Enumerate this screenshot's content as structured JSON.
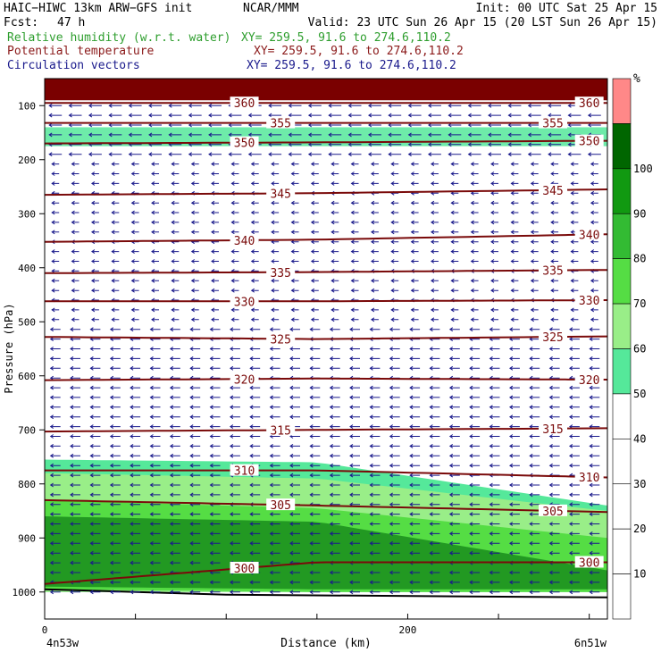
{
  "header": {
    "model": "HAIC−HIWC 13km ARW−GFS init",
    "org": "NCAR/MMM",
    "init": "Init: 00 UTC Sat 25 Apr 15",
    "fcst_label": "Fcst:",
    "fcst_value": "47 h",
    "valid": "Valid: 23 UTC Sun 26 Apr 15 (20 LST Sun 26 Apr 15)",
    "fields": [
      {
        "name": "Relative humidity (w.r.t. water)",
        "xy": "XY= 259.5, 91.6 to 274.6,110.2",
        "color": "#2e9e2e"
      },
      {
        "name": "Potential temperature",
        "xy": "XY= 259.5, 91.6 to 274.6,110.2",
        "color": "#8b1a1a"
      },
      {
        "name": "Circulation vectors",
        "xy": "XY= 259.5, 91.6 to 274.6,110.2",
        "color": "#1a1a8c"
      }
    ]
  },
  "chart_data": {
    "type": "cross-section",
    "xlabel": "Distance (km)",
    "ylabel": "Pressure (hPa)",
    "xlim": [
      0,
      310
    ],
    "ylim": [
      1050,
      50
    ],
    "x_ticks": [
      0,
      200
    ],
    "y_ticks": [
      100,
      200,
      300,
      400,
      500,
      600,
      700,
      800,
      900,
      1000
    ],
    "x_end_labels": [
      "4n53w",
      "6n51w"
    ],
    "colorbar": {
      "unit": "%",
      "levels": [
        10,
        20,
        30,
        40,
        50,
        60,
        70,
        80,
        90,
        100
      ],
      "colors": [
        "#ffffff",
        "#ffffff",
        "#ffffff",
        "#ffffff",
        "#ffffff",
        "#55e89a",
        "#99ee88",
        "#55dd44",
        "#33bb33",
        "#119911",
        "#006600",
        "#ff8888"
      ]
    },
    "theta_contours": [
      {
        "label": "360",
        "p": [
          95,
          95,
          95
        ]
      },
      {
        "label": "355",
        "p": [
          132,
          132,
          132
        ]
      },
      {
        "label": "350",
        "p": [
          170,
          168,
          165
        ]
      },
      {
        "label": "345",
        "p": [
          265,
          262,
          255
        ]
      },
      {
        "label": "340",
        "p": [
          352,
          348,
          338
        ]
      },
      {
        "label": "335",
        "p": [
          410,
          408,
          404
        ]
      },
      {
        "label": "330",
        "p": [
          462,
          462,
          460
        ]
      },
      {
        "label": "325",
        "p": [
          528,
          532,
          527
        ]
      },
      {
        "label": "320",
        "p": [
          608,
          605,
          607
        ]
      },
      {
        "label": "315",
        "p": [
          703,
          700,
          697
        ]
      },
      {
        "label": "310",
        "p": [
          775,
          775,
          788
        ]
      },
      {
        "label": "305",
        "p": [
          830,
          840,
          852
        ]
      },
      {
        "label": "300",
        "p": [
          985,
          945,
          945
        ]
      }
    ],
    "theta_contour_x": [
      0,
      150,
      310
    ],
    "rh_regions": [
      {
        "rh_class": "60-70",
        "top_p": [
          755,
          760,
          840
        ],
        "bottom_p": [
          1000,
          1000,
          1000
        ]
      },
      {
        "rh_class": "70-80",
        "top_p": [
          780,
          790,
          850
        ],
        "bottom_p": [
          1000,
          1000,
          1000
        ]
      },
      {
        "rh_class": "80-90",
        "top_p": [
          830,
          845,
          900
        ],
        "bottom_p": [
          995,
          1000,
          1000
        ]
      },
      {
        "rh_class": "90-100",
        "top_p": [
          860,
          870,
          960
        ],
        "bottom_p": [
          990,
          995,
          995
        ]
      },
      {
        "rh_class": "100+",
        "top_p": [
          50,
          50,
          50
        ],
        "bottom_p": [
          90,
          90,
          90
        ]
      }
    ],
    "wind_flow": "easterly (leftward) throughout the section"
  }
}
